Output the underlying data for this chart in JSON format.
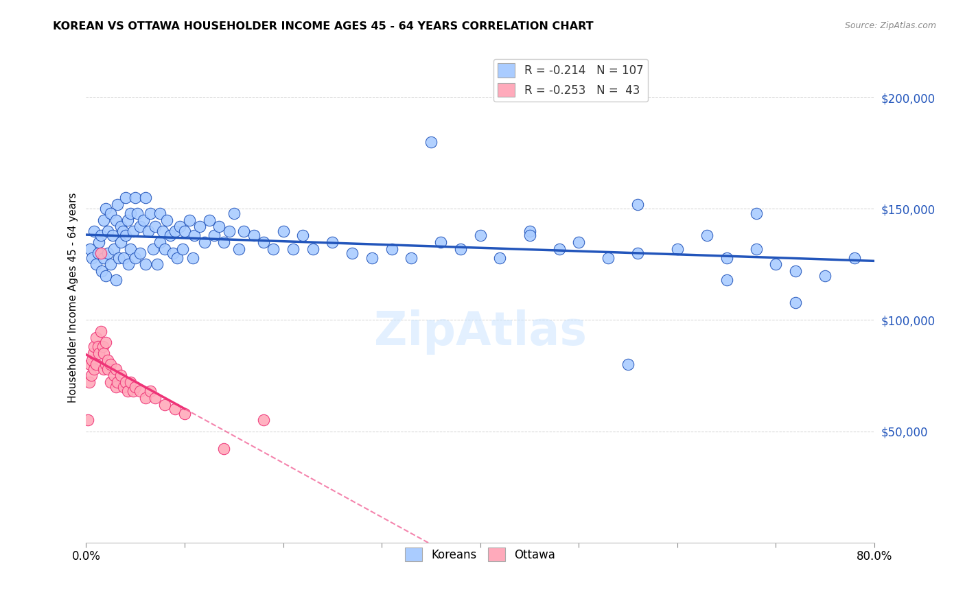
{
  "title": "KOREAN VS OTTAWA HOUSEHOLDER INCOME AGES 45 - 64 YEARS CORRELATION CHART",
  "source": "Source: ZipAtlas.com",
  "ylabel": "Householder Income Ages 45 - 64 years",
  "xlim": [
    0.0,
    0.8
  ],
  "ylim": [
    0,
    220000
  ],
  "yticks": [
    50000,
    100000,
    150000,
    200000
  ],
  "ytick_labels": [
    "$50,000",
    "$100,000",
    "$150,000",
    "$200,000"
  ],
  "xticks": [
    0.0,
    0.1,
    0.2,
    0.3,
    0.4,
    0.5,
    0.6,
    0.7,
    0.8
  ],
  "xtick_labels": [
    "0.0%",
    "",
    "",
    "",
    "",
    "",
    "",
    "",
    "80.0%"
  ],
  "background_color": "#ffffff",
  "korean_color": "#aaccff",
  "ottawa_color": "#ffaabb",
  "korean_R": -0.214,
  "korean_N": 107,
  "ottawa_R": -0.253,
  "ottawa_N": 43,
  "korean_trend_color": "#2255bb",
  "ottawa_trend_color": "#ee3377",
  "koreans_x": [
    0.004,
    0.006,
    0.008,
    0.01,
    0.012,
    0.013,
    0.015,
    0.016,
    0.018,
    0.018,
    0.02,
    0.02,
    0.022,
    0.022,
    0.025,
    0.025,
    0.027,
    0.028,
    0.03,
    0.03,
    0.032,
    0.033,
    0.035,
    0.035,
    0.037,
    0.038,
    0.04,
    0.04,
    0.042,
    0.043,
    0.045,
    0.045,
    0.048,
    0.05,
    0.05,
    0.052,
    0.055,
    0.055,
    0.058,
    0.06,
    0.06,
    0.063,
    0.065,
    0.068,
    0.07,
    0.072,
    0.075,
    0.075,
    0.078,
    0.08,
    0.082,
    0.085,
    0.088,
    0.09,
    0.092,
    0.095,
    0.098,
    0.1,
    0.105,
    0.108,
    0.11,
    0.115,
    0.12,
    0.125,
    0.13,
    0.135,
    0.14,
    0.145,
    0.15,
    0.155,
    0.16,
    0.17,
    0.18,
    0.19,
    0.2,
    0.21,
    0.22,
    0.23,
    0.25,
    0.27,
    0.29,
    0.31,
    0.33,
    0.36,
    0.38,
    0.4,
    0.42,
    0.45,
    0.48,
    0.5,
    0.53,
    0.56,
    0.6,
    0.63,
    0.65,
    0.68,
    0.7,
    0.72,
    0.75,
    0.78,
    0.35,
    0.45,
    0.55,
    0.65,
    0.56,
    0.68,
    0.72
  ],
  "koreans_y": [
    132000,
    128000,
    140000,
    125000,
    130000,
    135000,
    138000,
    122000,
    145000,
    128000,
    150000,
    120000,
    140000,
    130000,
    148000,
    125000,
    138000,
    132000,
    145000,
    118000,
    152000,
    128000,
    142000,
    135000,
    140000,
    128000,
    155000,
    138000,
    145000,
    125000,
    148000,
    132000,
    140000,
    155000,
    128000,
    148000,
    142000,
    130000,
    145000,
    155000,
    125000,
    140000,
    148000,
    132000,
    142000,
    125000,
    148000,
    135000,
    140000,
    132000,
    145000,
    138000,
    130000,
    140000,
    128000,
    142000,
    132000,
    140000,
    145000,
    128000,
    138000,
    142000,
    135000,
    145000,
    138000,
    142000,
    135000,
    140000,
    148000,
    132000,
    140000,
    138000,
    135000,
    132000,
    140000,
    132000,
    138000,
    132000,
    135000,
    130000,
    128000,
    132000,
    128000,
    135000,
    132000,
    138000,
    128000,
    140000,
    132000,
    135000,
    128000,
    130000,
    132000,
    138000,
    128000,
    132000,
    125000,
    122000,
    120000,
    128000,
    180000,
    138000,
    80000,
    118000,
    152000,
    148000,
    108000
  ],
  "ottawa_x": [
    0.002,
    0.003,
    0.004,
    0.005,
    0.006,
    0.007,
    0.008,
    0.008,
    0.01,
    0.01,
    0.012,
    0.013,
    0.015,
    0.015,
    0.017,
    0.018,
    0.018,
    0.02,
    0.02,
    0.022,
    0.022,
    0.025,
    0.025,
    0.028,
    0.03,
    0.03,
    0.032,
    0.035,
    0.038,
    0.04,
    0.042,
    0.045,
    0.048,
    0.05,
    0.055,
    0.06,
    0.065,
    0.07,
    0.08,
    0.09,
    0.1,
    0.14,
    0.18
  ],
  "ottawa_y": [
    55000,
    72000,
    80000,
    75000,
    82000,
    85000,
    88000,
    78000,
    92000,
    80000,
    88000,
    85000,
    130000,
    95000,
    88000,
    85000,
    78000,
    90000,
    80000,
    82000,
    78000,
    80000,
    72000,
    75000,
    78000,
    70000,
    72000,
    75000,
    70000,
    72000,
    68000,
    72000,
    68000,
    70000,
    68000,
    65000,
    68000,
    65000,
    62000,
    60000,
    58000,
    42000,
    55000
  ]
}
